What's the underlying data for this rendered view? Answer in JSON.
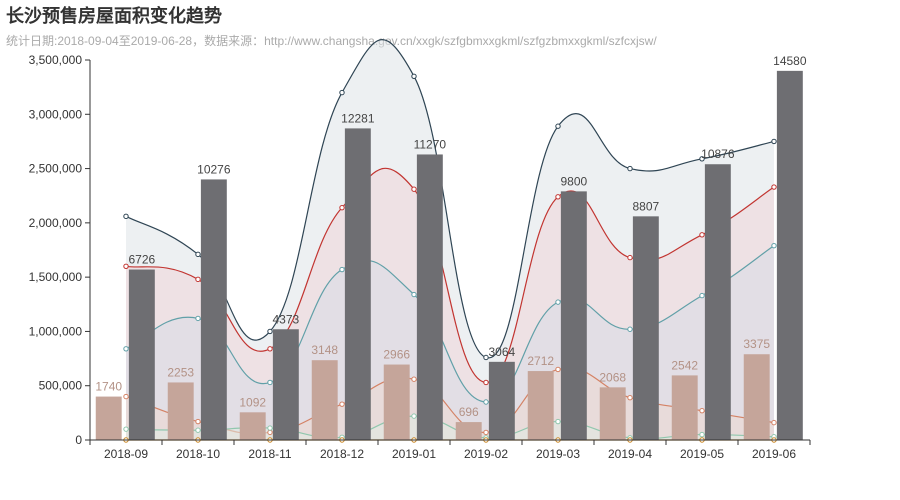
{
  "header": {
    "title": "长沙预售房屋面积变化趋势",
    "subtitle": "统计日期:2018-09-04至2019-06-28，数据来源：http://www.changsha.gov.cn/xxgk/szfgbmxxgkml/szfgzbmxxgkml/szfcxjsw/"
  },
  "colors": {
    "axis": "#333333",
    "dark_bar": "#6e6e72",
    "light_bar": "#c5a59a",
    "dark_label": "#444444",
    "light_label": "#b39286"
  },
  "chart_data": {
    "type": "bar",
    "categories": [
      "2018-09",
      "2018-10",
      "2018-11",
      "2018-12",
      "2019-01",
      "2019-02",
      "2019-03",
      "2019-04",
      "2019-05",
      "2019-06"
    ],
    "ylim": [
      0,
      3500000
    ],
    "yticks": [
      0,
      500000,
      1000000,
      1500000,
      2000000,
      2500000,
      3000000,
      3500000
    ],
    "ytick_labels": [
      "0",
      "500,000",
      "1,000,000",
      "1,500,000",
      "2,000,000",
      "2,500,000",
      "3,000,000",
      "3,500,000"
    ],
    "xlabel": "",
    "ylabel": "",
    "bars": [
      {
        "values": [
          400000,
          530000,
          255000,
          735000,
          695000,
          165000,
          635000,
          485000,
          595000,
          790000
        ],
        "labels": [
          "1740",
          "2253",
          "1092",
          "3148",
          "2966",
          "696",
          "2712",
          "2068",
          "2542",
          "3375"
        ],
        "color": "#c5a59a"
      },
      {
        "values": [
          1570000,
          2400000,
          1020000,
          2870000,
          2630000,
          720000,
          2290000,
          2060000,
          2540000,
          3400000
        ],
        "labels": [
          "6726",
          "10276",
          "4373",
          "12281",
          "11270",
          "3064",
          "9800",
          "8807",
          "10876",
          "14580"
        ],
        "color": "#6e6e72"
      }
    ],
    "series": [
      {
        "values": [
          2060000,
          1710000,
          1000000,
          3200000,
          3350000,
          760000,
          2890000,
          2500000,
          2590000,
          2750000
        ],
        "color": "#2f4554",
        "fill": "#dfe3e7"
      },
      {
        "values": [
          1600000,
          1480000,
          840000,
          2140000,
          2310000,
          530000,
          2240000,
          1680000,
          1890000,
          2330000
        ],
        "color": "#c23531",
        "fill": "#eed6d8"
      },
      {
        "values": [
          840000,
          1120000,
          530000,
          1570000,
          1340000,
          350000,
          1270000,
          1020000,
          1330000,
          1790000
        ],
        "color": "#61a0a8",
        "fill": "#d8dde6"
      },
      {
        "values": [
          400000,
          170000,
          70000,
          330000,
          560000,
          70000,
          650000,
          390000,
          270000,
          160000
        ],
        "color": "#d48265",
        "fill": "#ecd9d2"
      },
      {
        "values": [
          100000,
          90000,
          110000,
          25000,
          220000,
          20000,
          170000,
          20000,
          50000,
          30000
        ],
        "color": "#91c7ae",
        "fill": "#e0ebe3"
      },
      {
        "values": [
          0,
          0,
          0,
          0,
          0,
          0,
          0,
          0,
          0,
          0
        ],
        "color": "#ca8622",
        "fill": "#f3e6cf"
      }
    ]
  }
}
